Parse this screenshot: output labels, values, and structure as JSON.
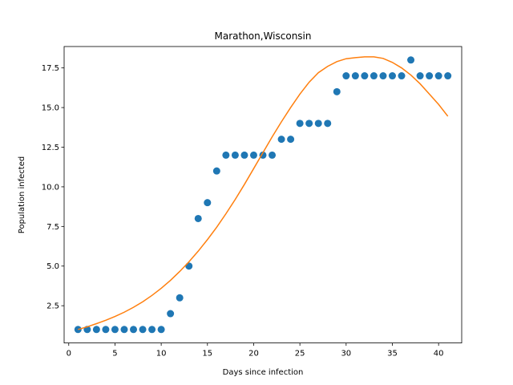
{
  "chart_data": {
    "type": "scatter",
    "title": "Marathon,Wisconsin",
    "xlabel": "Days since infection",
    "ylabel": "Population infected",
    "xlim": [
      -0.5,
      42.5
    ],
    "ylim": [
      0.15,
      18.85
    ],
    "xticks": [
      0,
      5,
      10,
      15,
      20,
      25,
      30,
      35,
      40
    ],
    "xtick_labels": [
      "0",
      "5",
      "10",
      "15",
      "20",
      "25",
      "30",
      "35",
      "40"
    ],
    "yticks": [
      2.5,
      5.0,
      7.5,
      10.0,
      12.5,
      15.0,
      17.5
    ],
    "ytick_labels": [
      "2.5",
      "5.0",
      "7.5",
      "10.0",
      "12.5",
      "15.0",
      "17.5"
    ],
    "grid": false,
    "legend": "none",
    "series": [
      {
        "kind": "scatter",
        "color": "#1f77b4",
        "x": [
          1,
          2,
          3,
          4,
          5,
          6,
          7,
          8,
          9,
          10,
          11,
          12,
          13,
          14,
          15,
          16,
          17,
          18,
          19,
          20,
          21,
          22,
          23,
          24,
          25,
          26,
          27,
          28,
          29,
          30,
          31,
          32,
          33,
          34,
          35,
          36,
          37,
          38,
          39,
          40,
          41
        ],
        "y": [
          1,
          1,
          1,
          1,
          1,
          1,
          1,
          1,
          1,
          1,
          2,
          3,
          5,
          8,
          9,
          11,
          12,
          12,
          12,
          12,
          12,
          12,
          13,
          13,
          14,
          14,
          14,
          14,
          16,
          17,
          17,
          17,
          17,
          17,
          17,
          17,
          18,
          17,
          17,
          17,
          17
        ]
      },
      {
        "kind": "line",
        "color": "#ff7f0e",
        "x": [
          1,
          2,
          3,
          4,
          5,
          6,
          7,
          8,
          9,
          10,
          11,
          12,
          13,
          14,
          15,
          16,
          17,
          18,
          19,
          20,
          21,
          22,
          23,
          24,
          25,
          26,
          27,
          28,
          29,
          30,
          31,
          32,
          33,
          34,
          35,
          36,
          37,
          38,
          39,
          40,
          41
        ],
        "y": [
          1.0,
          1.17,
          1.37,
          1.58,
          1.82,
          2.09,
          2.4,
          2.75,
          3.15,
          3.6,
          4.1,
          4.66,
          5.27,
          5.94,
          6.67,
          7.45,
          8.3,
          9.2,
          10.15,
          11.15,
          12.15,
          13.15,
          14.1,
          15.0,
          15.85,
          16.6,
          17.2,
          17.6,
          17.9,
          18.08,
          18.15,
          18.2,
          18.2,
          18.1,
          17.85,
          17.5,
          17.05,
          16.5,
          15.85,
          15.2,
          14.45
        ]
      }
    ]
  }
}
